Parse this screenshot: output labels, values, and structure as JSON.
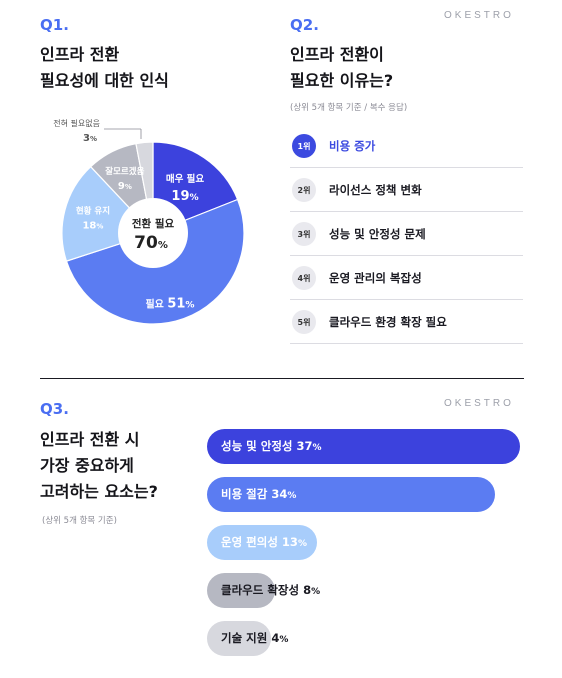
{
  "brand": "OKESTRO",
  "q1": {
    "number": "Q1.",
    "title_line1": "인프라 전환",
    "title_line2": "필요성에 대한 인식",
    "center_label": "전환 필요",
    "center_value": "70",
    "center_unit": "%"
  },
  "q2": {
    "number": "Q2.",
    "title_line1": "인프라 전환이",
    "title_line2": "필요한 이유는?",
    "note": "(상위 5개 항목 기준 / 복수 응답)",
    "ranks": [
      {
        "badge": "1위",
        "label": "비용 증가"
      },
      {
        "badge": "2위",
        "label": "라이선스 정책 변화"
      },
      {
        "badge": "3위",
        "label": "성능 및 안정성 문제"
      },
      {
        "badge": "4위",
        "label": "운영 관리의 복잡성"
      },
      {
        "badge": "5위",
        "label": "클라우드 환경 확장 필요"
      }
    ]
  },
  "q3": {
    "number": "Q3.",
    "title_line1": "인프라 전환 시",
    "title_line2": "가장 중요하게",
    "title_line3": "고려하는 요소는?",
    "note": "(상위 5개 항목 기준)"
  },
  "chart_data": [
    {
      "type": "pie",
      "categories": [
        "매우 필요",
        "필요",
        "현황 유지",
        "잘모르겠음",
        "전혀 필요없음"
      ],
      "values": [
        19,
        51,
        18,
        9,
        3
      ],
      "unit": "%",
      "colors": [
        "#3c42dd",
        "#5b7cf2",
        "#a8cdfb",
        "#b6b8c2",
        "#d7d8de"
      ]
    },
    {
      "type": "bar",
      "categories": [
        "성능 및 안정성",
        "비용 절감",
        "운영 편의성",
        "클라우드 확장성",
        "기술 지원"
      ],
      "values": [
        37,
        34,
        13,
        8,
        4
      ],
      "unit": "%",
      "colors": [
        "#3c42dd",
        "#5b7cf2",
        "#a8cdfb",
        "#b6b8c2",
        "#d7d8de"
      ]
    }
  ]
}
